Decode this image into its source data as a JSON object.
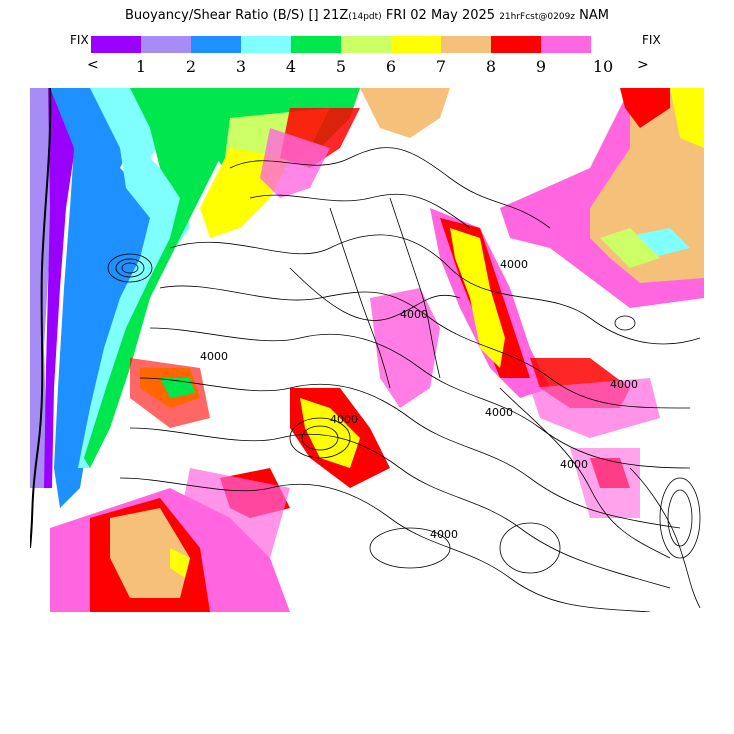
{
  "header": {
    "title_main": "Buoyancy/Shear Ratio (B/S)",
    "title_bracket": "[]",
    "title_time": "21Z",
    "title_pdt": "(14pdt)",
    "title_date": "FRI 02 May 2025",
    "title_fcst": "21hrFcst@0209z",
    "title_model": "NAM"
  },
  "legend": {
    "fix_left": "FIX",
    "fix_right": "FIX",
    "arrow_left": "<",
    "arrow_right": ">",
    "swatches": [
      "#9a00ff",
      "#a88cf5",
      "#1e90ff",
      "#80ffff",
      "#00e64d",
      "#ccff66",
      "#ffff00",
      "#f5c07a",
      "#ff0000",
      "#ff66e0"
    ],
    "ticks": [
      "1",
      "2",
      "3",
      "4",
      "5",
      "6",
      "7",
      "8",
      "9",
      "10"
    ]
  },
  "map": {
    "contour_labels": [
      "4000",
      "4000",
      "4000",
      "4000",
      "4000",
      "4000",
      "4000",
      "4000"
    ]
  }
}
